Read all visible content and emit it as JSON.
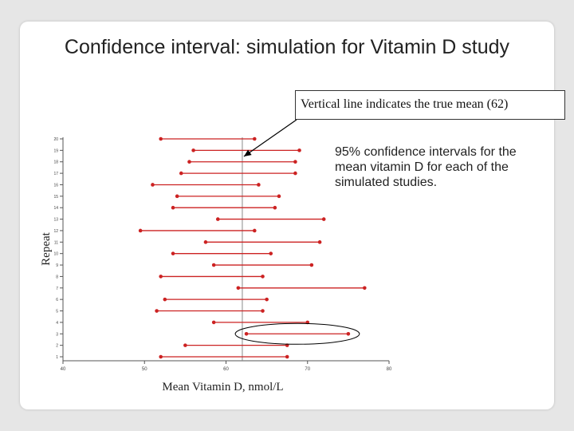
{
  "slide": {
    "title": "Confidence interval: simulation for Vitamin D study",
    "callout": "Vertical line indicates the true mean (62)",
    "description": "95% confidence intervals for the mean vitamin D for each of the simulated studies."
  },
  "chart_data": {
    "type": "interval",
    "xlabel": "Mean Vitamin D, nmol/L",
    "ylabel": "Repeat",
    "xlim": [
      40,
      80
    ],
    "x_ticks": [
      40,
      50,
      60,
      70,
      80
    ],
    "true_mean": 62,
    "grid": false,
    "series_color": "#cc2222",
    "intervals": [
      {
        "repeat": 20,
        "lower": 52.0,
        "upper": 63.5
      },
      {
        "repeat": 19,
        "lower": 56.0,
        "upper": 69.0
      },
      {
        "repeat": 18,
        "lower": 55.5,
        "upper": 68.5
      },
      {
        "repeat": 17,
        "lower": 54.5,
        "upper": 68.5
      },
      {
        "repeat": 16,
        "lower": 51.0,
        "upper": 64.0
      },
      {
        "repeat": 15,
        "lower": 54.0,
        "upper": 66.5
      },
      {
        "repeat": 14,
        "lower": 53.5,
        "upper": 66.0
      },
      {
        "repeat": 13,
        "lower": 59.0,
        "upper": 72.0
      },
      {
        "repeat": 12,
        "lower": 49.5,
        "upper": 63.5
      },
      {
        "repeat": 11,
        "lower": 57.5,
        "upper": 71.5
      },
      {
        "repeat": 10,
        "lower": 53.5,
        "upper": 65.5
      },
      {
        "repeat": 9,
        "lower": 58.5,
        "upper": 70.5
      },
      {
        "repeat": 8,
        "lower": 52.0,
        "upper": 64.5
      },
      {
        "repeat": 7,
        "lower": 61.5,
        "upper": 77.0
      },
      {
        "repeat": 6,
        "lower": 52.5,
        "upper": 65.0
      },
      {
        "repeat": 5,
        "lower": 51.5,
        "upper": 64.5
      },
      {
        "repeat": 4,
        "lower": 58.5,
        "upper": 70.0
      },
      {
        "repeat": 3,
        "lower": 62.5,
        "upper": 75.0
      },
      {
        "repeat": 2,
        "lower": 55.0,
        "upper": 67.5
      },
      {
        "repeat": 1,
        "lower": 52.0,
        "upper": 67.5
      }
    ],
    "highlighted_repeat": 3
  }
}
